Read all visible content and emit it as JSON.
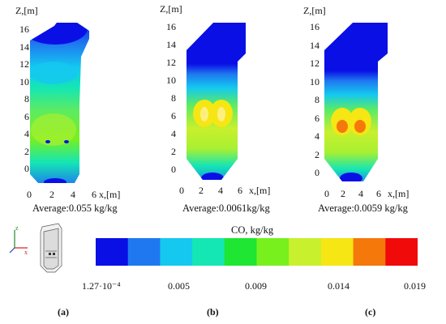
{
  "panels": [
    {
      "id": "a",
      "label": "(a)",
      "average": "Average:0.055 kg/kg",
      "z_axis_label": "Z,[m]",
      "x_axis_label": "x,[m]",
      "z_ticks": [
        "0",
        "2",
        "4",
        "6",
        "8",
        "10",
        "12",
        "14",
        "16"
      ],
      "x_ticks": [
        "0",
        "2",
        "4",
        "6"
      ]
    },
    {
      "id": "b",
      "label": "(b)",
      "average": "Average:0.0061kg/kg",
      "z_axis_label": "Z,[m]",
      "x_axis_label": "x,[m]",
      "z_ticks": [
        "0",
        "2",
        "4",
        "6",
        "8",
        "10",
        "12",
        "14",
        "16"
      ],
      "x_ticks": [
        "0",
        "2",
        "4",
        "6"
      ]
    },
    {
      "id": "c",
      "label": "(c)",
      "average": "Average:0.0059 kg/kg",
      "z_axis_label": "Z,[m]",
      "x_axis_label": "x,[m]",
      "z_ticks": [
        "0",
        "2",
        "4",
        "6",
        "8",
        "10",
        "12",
        "14",
        "16"
      ],
      "x_ticks": [
        "0",
        "2",
        "4",
        "6"
      ]
    }
  ],
  "colorbar": {
    "title": "CO, kg/kg",
    "ticks": [
      "1.27·10⁻⁴",
      "0.005",
      "0.009",
      "0.014",
      "0.019"
    ],
    "colors": [
      "#0a0fe6",
      "#1f78f0",
      "#14c8f0",
      "#14e6b4",
      "#1ee632",
      "#78f01e",
      "#c8f02d",
      "#f5e614",
      "#f5780a",
      "#f00a0a"
    ]
  },
  "orientation_icon": {
    "z": "z",
    "x": "x"
  }
}
